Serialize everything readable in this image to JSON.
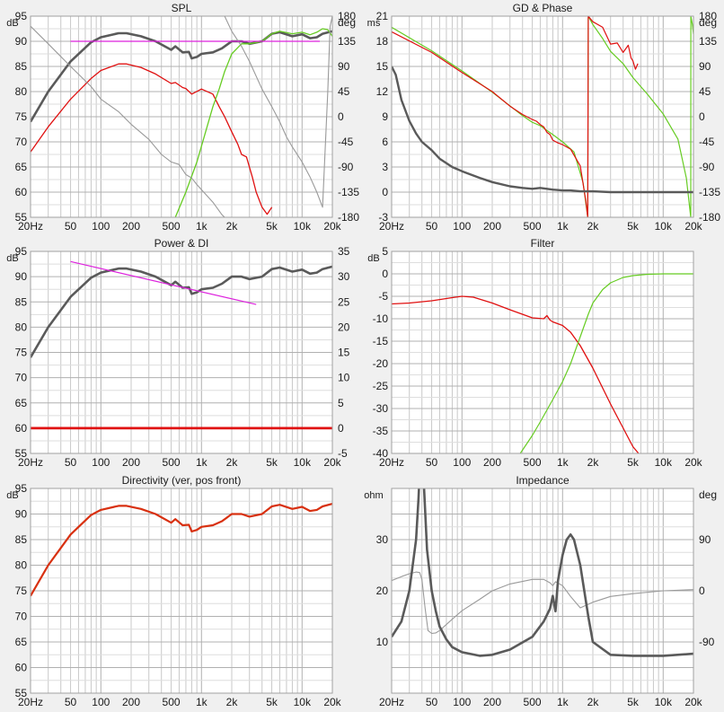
{
  "colors": {
    "background": "#f0f0f0",
    "plot_bg": "#ffffff",
    "grid": "#c8c8c8",
    "text": "#1a1a1a",
    "dark": "#5a5a5a",
    "red": "#e01010",
    "green": "#66cc22",
    "grey": "#9a9a9a",
    "magenta": "#dd22dd",
    "orange_red": "#d83010"
  },
  "chart_data": [
    {
      "title": "SPL",
      "type": "line",
      "x_scale": "log",
      "xlim": [
        20,
        20000
      ],
      "x_ticks": [
        "20Hz",
        "50",
        "100",
        "200",
        "500",
        "1k",
        "2k",
        "5k",
        "10k",
        "20k"
      ],
      "left_unit": "dB",
      "ylim": [
        55,
        95
      ],
      "y_ticks": [
        "55",
        "60",
        "65",
        "70",
        "75",
        "80",
        "85",
        "90",
        "95"
      ],
      "right_unit": "deg",
      "y2lim": [
        -180,
        180
      ],
      "y2_ticks": [
        "-180",
        "-135",
        "-90",
        "-45",
        "0",
        "45",
        "90",
        "135",
        "180"
      ],
      "series": [
        {
          "axis": "left",
          "color": "#5a5a5a",
          "width": 2.6,
          "x": [
            20,
            30,
            50,
            80,
            100,
            150,
            180,
            250,
            350,
            500,
            550,
            650,
            750,
            800,
            900,
            1000,
            1300,
            1600,
            2000,
            2500,
            3000,
            4000,
            5000,
            6000,
            8000,
            10000,
            12000,
            14000,
            16000,
            20000
          ],
          "y": [
            74,
            80,
            86,
            89.8,
            90.8,
            91.6,
            91.6,
            91,
            90,
            88.3,
            89,
            87.8,
            87.9,
            86.6,
            86.9,
            87.5,
            87.8,
            88.6,
            90,
            90,
            89.5,
            90,
            91.5,
            91.8,
            91,
            91.4,
            90.6,
            90.8,
            91.5,
            92
          ]
        },
        {
          "axis": "left",
          "color": "#e01010",
          "width": 1.3,
          "x": [
            20,
            30,
            50,
            80,
            100,
            150,
            180,
            250,
            350,
            500,
            550,
            650,
            700,
            800,
            1000,
            1300,
            1500,
            1700,
            2000,
            2300,
            2500,
            2800,
            3200,
            3500,
            4000,
            4500,
            5000
          ],
          "y": [
            68,
            73,
            78.5,
            82.6,
            84.2,
            85.5,
            85.5,
            84.8,
            83.5,
            81.6,
            81.8,
            80.8,
            80.6,
            79.5,
            80.5,
            79.5,
            77,
            75,
            72,
            69.5,
            67.5,
            67,
            63,
            60,
            57,
            55.6,
            57
          ]
        },
        {
          "axis": "left",
          "color": "#66cc22",
          "width": 1.3,
          "x": [
            550,
            700,
            900,
            1100,
            1300,
            1500,
            1700,
            2000,
            2500,
            3000,
            4000,
            5000,
            6000,
            8000,
            10000,
            12000,
            14000,
            16000,
            18000,
            20000
          ],
          "y": [
            55,
            60,
            66,
            72,
            77,
            80.5,
            84,
            87.5,
            89.5,
            89.5,
            90,
            91.5,
            92,
            91.5,
            91.8,
            91.3,
            91.8,
            92.5,
            92.3,
            91
          ]
        },
        {
          "axis": "left",
          "color": "#9a9a9a",
          "width": 1.1,
          "x": [
            20,
            30,
            50,
            80,
            100,
            150,
            200,
            300,
            400,
            500,
            600,
            700,
            800,
            900,
            1000,
            1300,
            1600,
            1700,
            1800
          ],
          "y": [
            93,
            89.5,
            85,
            81,
            78.5,
            76,
            73.5,
            70.5,
            67.5,
            66,
            65.5,
            63.5,
            62.8,
            61.5,
            60.5,
            58,
            55.5,
            55,
            55
          ]
        },
        {
          "axis": "left",
          "color": "#9a9a9a",
          "width": 1.1,
          "x": [
            1700,
            2000,
            2500,
            3000,
            4000,
            5000,
            6000,
            7000,
            8000,
            10000,
            12000,
            14000,
            16000,
            18000,
            19000,
            20000
          ],
          "y": [
            95,
            92,
            89,
            86,
            80.5,
            77,
            74,
            71,
            69,
            66,
            63,
            60,
            57,
            80,
            93,
            95
          ]
        },
        {
          "axis": "left",
          "color": "#dd22dd",
          "width": 1.2,
          "x": [
            50,
            15000
          ],
          "y": [
            90,
            90
          ]
        }
      ]
    },
    {
      "title": "GD & Phase",
      "type": "line",
      "x_scale": "log",
      "xlim": [
        20,
        20000
      ],
      "x_ticks": [
        "20Hz",
        "50",
        "100",
        "200",
        "500",
        "1k",
        "2k",
        "5k",
        "10k",
        "20k"
      ],
      "left_unit": "ms",
      "ylim": [
        -3,
        21
      ],
      "y_ticks": [
        "-3",
        "0",
        "3",
        "6",
        "9",
        "12",
        "15",
        "18",
        "21"
      ],
      "right_unit": "deg",
      "y2lim": [
        -180,
        180
      ],
      "y2_ticks": [
        "-180",
        "-135",
        "-90",
        "-45",
        "0",
        "45",
        "90",
        "135",
        "180"
      ],
      "series": [
        {
          "axis": "right",
          "color": "#66cc22",
          "width": 1.2,
          "x": [
            20,
            50,
            100,
            200,
            400,
            500,
            600,
            800,
            1000,
            1300,
            1600,
            1780,
            1790,
            1800,
            2000,
            2500,
            3000,
            4000,
            5000,
            7000,
            10000,
            14000,
            17000,
            18800,
            18850,
            19500,
            20000
          ],
          "y": [
            160,
            118,
            82,
            44,
            2,
            -10,
            -16,
            -32,
            -45,
            -63,
            -118,
            -180,
            0,
            180,
            165,
            140,
            117,
            95,
            70,
            40,
            5,
            -40,
            -110,
            -180,
            180,
            165,
            148
          ]
        },
        {
          "axis": "right",
          "color": "#e01010",
          "width": 1.2,
          "x": [
            20,
            50,
            100,
            200,
            300,
            400,
            500,
            550,
            600,
            650,
            700,
            750,
            800,
            900,
            1000,
            1200,
            1500,
            1700,
            1780,
            1790,
            1800,
            2000,
            2500,
            3000,
            3500,
            4000,
            4500,
            4800,
            5000,
            5300,
            5600
          ],
          "y": [
            152,
            115,
            79,
            45,
            19,
            4,
            -5,
            -8,
            -14,
            -18,
            -28,
            -32,
            -42,
            -47,
            -50,
            -58,
            -88,
            -150,
            -180,
            0,
            180,
            170,
            160,
            130,
            132,
            115,
            128,
            105,
            100,
            85,
            95
          ]
        },
        {
          "axis": "left",
          "color": "#5a5a5a",
          "width": 2.4,
          "x": [
            20,
            22,
            25,
            30,
            35,
            40,
            50,
            60,
            80,
            100,
            150,
            200,
            300,
            400,
            500,
            600,
            800,
            1000,
            1200,
            1500,
            2000,
            3000,
            5000,
            10000,
            15000,
            20000
          ],
          "y": [
            15,
            14,
            11,
            8.5,
            7,
            6,
            5,
            4,
            3,
            2.5,
            1.7,
            1.2,
            0.7,
            0.5,
            0.4,
            0.5,
            0.3,
            0.2,
            0.2,
            0.1,
            0.1,
            0,
            0,
            0,
            0,
            0
          ]
        }
      ]
    },
    {
      "title": "Power & DI",
      "type": "line",
      "x_scale": "log",
      "xlim": [
        20,
        20000
      ],
      "x_ticks": [
        "20Hz",
        "50",
        "100",
        "200",
        "500",
        "1k",
        "2k",
        "5k",
        "10k",
        "20k"
      ],
      "left_unit": "dB",
      "ylim": [
        55,
        95
      ],
      "y_ticks": [
        "55",
        "60",
        "65",
        "70",
        "75",
        "80",
        "85",
        "90",
        "95"
      ],
      "right_unit": "",
      "y2lim": [
        -5,
        35
      ],
      "y2_ticks": [
        "-5",
        "0",
        "5",
        "10",
        "15",
        "20",
        "25",
        "30",
        "35"
      ],
      "series": [
        {
          "axis": "left",
          "color": "#5a5a5a",
          "width": 2.6,
          "x": [
            20,
            30,
            50,
            80,
            100,
            150,
            180,
            250,
            350,
            500,
            550,
            650,
            750,
            800,
            900,
            1000,
            1300,
            1600,
            2000,
            2500,
            3000,
            4000,
            5000,
            6000,
            8000,
            10000,
            12000,
            14000,
            16000,
            20000
          ],
          "y": [
            74,
            80,
            86,
            89.8,
            90.8,
            91.6,
            91.6,
            91,
            90,
            88.3,
            89,
            87.8,
            87.9,
            86.6,
            86.9,
            87.5,
            87.8,
            88.6,
            90,
            90,
            89.5,
            90,
            91.5,
            91.8,
            91,
            91.4,
            90.6,
            90.8,
            91.5,
            92
          ]
        },
        {
          "axis": "left",
          "color": "#dd22dd",
          "width": 1.2,
          "x": [
            50,
            3500
          ],
          "y": [
            93,
            84.5
          ]
        },
        {
          "axis": "right",
          "color": "#e01010",
          "width": 2.8,
          "x": [
            20,
            20000
          ],
          "y": [
            0,
            0
          ]
        }
      ]
    },
    {
      "title": "Filter",
      "type": "line",
      "x_scale": "log",
      "xlim": [
        20,
        20000
      ],
      "x_ticks": [
        "20Hz",
        "50",
        "100",
        "200",
        "500",
        "1k",
        "2k",
        "5k",
        "10k",
        "20k"
      ],
      "left_unit": "dB",
      "ylim": [
        -40,
        5
      ],
      "y_ticks": [
        "-40",
        "-35",
        "-30",
        "-25",
        "-20",
        "-15",
        "-10",
        "-5",
        "0",
        "5"
      ],
      "right_unit": "",
      "y2lim": [
        -40,
        5
      ],
      "y2_ticks": [],
      "series": [
        {
          "axis": "left",
          "color": "#e01010",
          "width": 1.3,
          "x": [
            20,
            30,
            50,
            80,
            100,
            130,
            200,
            300,
            500,
            650,
            700,
            750,
            800,
            1000,
            1200,
            1500,
            2000,
            3000,
            5000,
            5700
          ],
          "y": [
            -6.7,
            -6.5,
            -6,
            -5.3,
            -5,
            -5.2,
            -6.5,
            -8,
            -9.8,
            -10,
            -9.3,
            -10.3,
            -10.7,
            -11.5,
            -13,
            -16,
            -21,
            -29,
            -38.5,
            -40
          ]
        },
        {
          "axis": "left",
          "color": "#66cc22",
          "width": 1.2,
          "x": [
            380,
            500,
            600,
            800,
            1000,
            1200,
            1500,
            1800,
            2000,
            2500,
            3000,
            4000,
            5000,
            7000,
            10000,
            20000
          ],
          "y": [
            -40,
            -36,
            -33,
            -28,
            -24,
            -20,
            -14,
            -9,
            -6.5,
            -3.5,
            -2,
            -0.8,
            -0.4,
            -0.1,
            0,
            0
          ]
        }
      ]
    },
    {
      "title": "Directivity (ver, pos front)",
      "type": "line",
      "x_scale": "log",
      "xlim": [
        20,
        20000
      ],
      "x_ticks": [
        "20Hz",
        "50",
        "100",
        "200",
        "500",
        "1k",
        "2k",
        "5k",
        "10k",
        "20k"
      ],
      "left_unit": "dB",
      "ylim": [
        55,
        95
      ],
      "y_ticks": [
        "55",
        "60",
        "65",
        "70",
        "75",
        "80",
        "85",
        "90",
        "95"
      ],
      "right_unit": "",
      "y2lim": [
        55,
        95
      ],
      "y2_ticks": [],
      "series": [
        {
          "axis": "left",
          "color": "#d83010",
          "width": 2.2,
          "x": [
            20,
            30,
            50,
            80,
            100,
            150,
            180,
            250,
            350,
            500,
            550,
            650,
            750,
            800,
            900,
            1000,
            1300,
            1600,
            2000,
            2500,
            3000,
            4000,
            5000,
            6000,
            8000,
            10000,
            12000,
            14000,
            16000,
            20000
          ],
          "y": [
            74,
            80,
            86,
            89.8,
            90.8,
            91.6,
            91.6,
            91,
            90,
            88.3,
            89,
            87.8,
            87.9,
            86.6,
            86.9,
            87.5,
            87.8,
            88.6,
            90,
            90,
            89.5,
            90,
            91.5,
            91.8,
            91,
            91.4,
            90.6,
            90.8,
            91.5,
            92
          ]
        }
      ]
    },
    {
      "title": "Impedance",
      "type": "line",
      "x_scale": "log",
      "xlim": [
        20,
        20000
      ],
      "x_ticks": [
        "20Hz",
        "50",
        "100",
        "200",
        "500",
        "1k",
        "2k",
        "5k",
        "10k",
        "20k"
      ],
      "left_unit": "ohm",
      "ylim": [
        0,
        40
      ],
      "y_ticks": [
        "10",
        "20",
        "30"
      ],
      "right_unit": "deg",
      "y2lim": [
        -180,
        180
      ],
      "y2_ticks": [
        "-90",
        "0",
        "90"
      ],
      "series": [
        {
          "axis": "right",
          "color": "#9a9a9a",
          "width": 1.1,
          "x": [
            20,
            25,
            30,
            35,
            38,
            40,
            43,
            46,
            50,
            55,
            60,
            80,
            100,
            150,
            200,
            300,
            500,
            650,
            750,
            800,
            850,
            1000,
            1200,
            1500,
            2000,
            3000,
            5000,
            10000,
            20000
          ],
          "y": [
            18,
            25,
            30,
            33,
            32,
            20,
            -30,
            -70,
            -75,
            -74,
            -70,
            -50,
            -35,
            -15,
            0,
            12,
            20,
            20,
            14,
            9,
            16,
            9,
            -10,
            -30,
            -20,
            -10,
            -5,
            0,
            2
          ]
        },
        {
          "axis": "left",
          "color": "#5a5a5a",
          "width": 2.6,
          "x": [
            20,
            25,
            30,
            35,
            37,
            39,
            40,
            42,
            45,
            50,
            55,
            60,
            70,
            80,
            100,
            150,
            200,
            300,
            500,
            650,
            750,
            800,
            850,
            900,
            1000,
            1100,
            1200,
            1300,
            1500,
            1800,
            2000,
            3000,
            5000,
            10000,
            20000
          ],
          "y": [
            11,
            14,
            20,
            30,
            38,
            48,
            48,
            40,
            28,
            20,
            16,
            13,
            10.5,
            9,
            8,
            7.3,
            7.5,
            8.5,
            11,
            14,
            16.5,
            19,
            16,
            22,
            27,
            30,
            31,
            30,
            25,
            15,
            10,
            7.5,
            7.3,
            7.3,
            7.7
          ]
        }
      ]
    }
  ]
}
